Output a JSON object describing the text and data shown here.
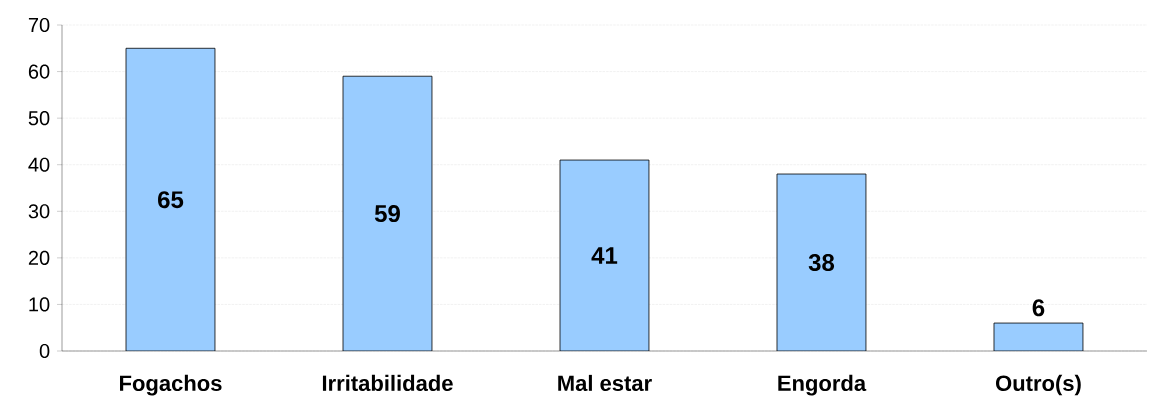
{
  "chart_data": {
    "type": "bar",
    "categories": [
      "Fogachos",
      "Irritabilidade",
      "Mal estar",
      "Engorda",
      "Outro(s)"
    ],
    "values": [
      65,
      59,
      41,
      38,
      6
    ],
    "color": "#99ccff",
    "ylim": [
      0,
      70
    ],
    "yticks": [
      0,
      10,
      20,
      30,
      40,
      50,
      60,
      70
    ],
    "grid": "y",
    "data_labels": true
  }
}
